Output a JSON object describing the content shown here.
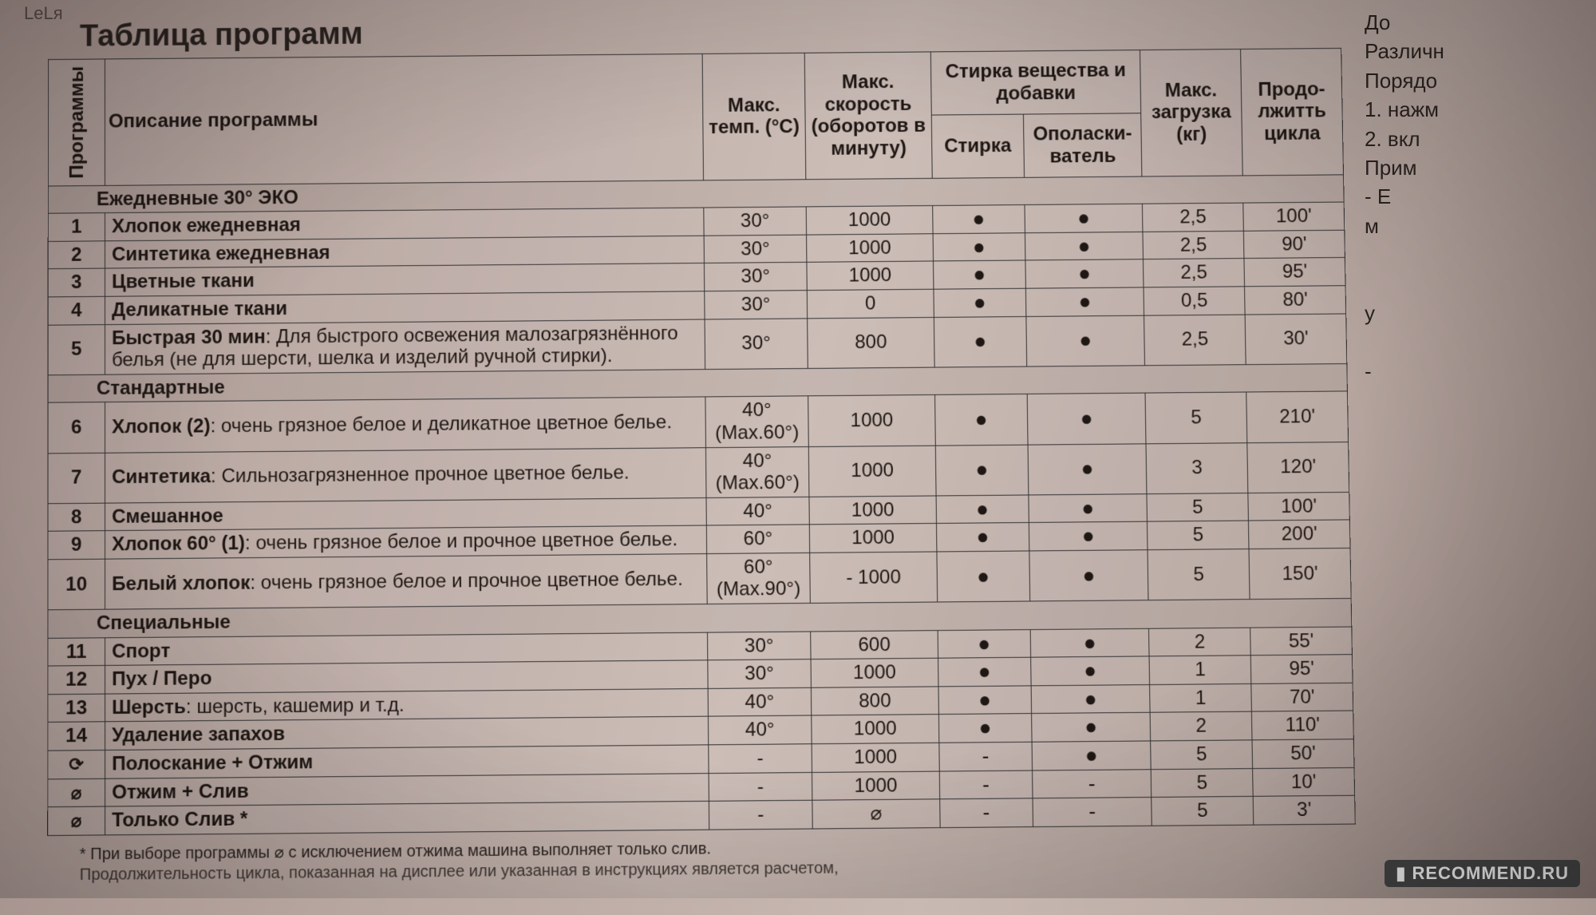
{
  "title": "Таблица программ",
  "topleft": "LeLя",
  "watermark": "▮ RECOMMEND.RU",
  "footnote": "* При выборе программы ⌀ с исключением отжима машина выполняет только слив.",
  "footer2": "Продолжительность цикла, показанная на дисплее или указанная в инструкциях является расчетом, ",
  "right_fragments": [
    "До",
    "Различн",
    "Порядо",
    "1. нажм",
    "2. вкл",
    "Прим",
    "- Е",
    "м",
    "",
    "",
    "у",
    "",
    "-"
  ],
  "headers": {
    "programs": "Программы",
    "desc": "Описание программы",
    "temp": "Макс. темп. (°C)",
    "speed": "Макс. скорость (оборотов в минуту)",
    "additives_group": "Стирка вещества и добавки",
    "wash": "Стирка",
    "rinse": "Ополаски-ватель",
    "load": "Макс. загрузка (кг)",
    "duration": "Продо-лжитть цикла"
  },
  "sections": [
    {
      "title": "Ежедневные 30° ЭКО",
      "rows": [
        {
          "n": "1",
          "desc_b": "Хлопок ежедневная",
          "desc_r": "",
          "temp": "30°",
          "speed": "1000",
          "wash": "●",
          "rinse": "●",
          "load": "2,5",
          "dur": "100'"
        },
        {
          "n": "2",
          "desc_b": "Синтетика ежедневная",
          "desc_r": "",
          "temp": "30°",
          "speed": "1000",
          "wash": "●",
          "rinse": "●",
          "load": "2,5",
          "dur": "90'"
        },
        {
          "n": "3",
          "desc_b": "Цветные ткани",
          "desc_r": "",
          "temp": "30°",
          "speed": "1000",
          "wash": "●",
          "rinse": "●",
          "load": "2,5",
          "dur": "95'"
        },
        {
          "n": "4",
          "desc_b": "Деликатные ткани",
          "desc_r": "",
          "temp": "30°",
          "speed": "0",
          "wash": "●",
          "rinse": "●",
          "load": "0,5",
          "dur": "80'"
        },
        {
          "n": "5",
          "desc_b": "Быстрая 30 мин",
          "desc_r": ": Для быстрого освежения малозагрязнённого белья (не для шерсти, шелка и изделий ручной стирки).",
          "temp": "30°",
          "speed": "800",
          "wash": "●",
          "rinse": "●",
          "load": "2,5",
          "dur": "30'"
        }
      ]
    },
    {
      "title": "Стандартные",
      "rows": [
        {
          "n": "6",
          "desc_b": "Хлопок (2)",
          "desc_r": ": очень грязное белое и деликатное цветное белье.",
          "temp": "40° (Max.60°)",
          "speed": "1000",
          "wash": "●",
          "rinse": "●",
          "load": "5",
          "dur": "210'"
        },
        {
          "n": "7",
          "desc_b": "Синтетика",
          "desc_r": ": Сильнозагрязненное прочное цветное белье.",
          "temp": "40° (Max.60°)",
          "speed": "1000",
          "wash": "●",
          "rinse": "●",
          "load": "3",
          "dur": "120'"
        },
        {
          "n": "8",
          "desc_b": "Смешанное",
          "desc_r": "",
          "temp": "40°",
          "speed": "1000",
          "wash": "●",
          "rinse": "●",
          "load": "5",
          "dur": "100'"
        },
        {
          "n": "9",
          "desc_b": "Хлопок 60° (1)",
          "desc_r": ": очень грязное белое и прочное цветное белье.",
          "temp": "60°",
          "speed": "1000",
          "wash": "●",
          "rinse": "●",
          "load": "5",
          "dur": "200'"
        },
        {
          "n": "10",
          "desc_b": "Белый хлопок",
          "desc_r": ": очень грязное белое и прочное цветное белье.",
          "temp": "60° (Max.90°)",
          "speed": "- 1000",
          "wash": "●",
          "rinse": "●",
          "load": "5",
          "dur": "150'"
        }
      ]
    },
    {
      "title": "Специальные",
      "rows": [
        {
          "n": "11",
          "desc_b": "Спорт",
          "desc_r": "",
          "temp": "30°",
          "speed": "600",
          "wash": "●",
          "rinse": "●",
          "load": "2",
          "dur": "55'"
        },
        {
          "n": "12",
          "desc_b": "Пух / Перо",
          "desc_r": "",
          "temp": "30°",
          "speed": "1000",
          "wash": "●",
          "rinse": "●",
          "load": "1",
          "dur": "95'"
        },
        {
          "n": "13",
          "desc_b": "Шерсть",
          "desc_r": ": шерсть, кашемир и т.д.",
          "temp": "40°",
          "speed": "800",
          "wash": "●",
          "rinse": "●",
          "load": "1",
          "dur": "70'"
        },
        {
          "n": "14",
          "desc_b": "Удаление запахов",
          "desc_r": "",
          "temp": "40°",
          "speed": "1000",
          "wash": "●",
          "rinse": "●",
          "load": "2",
          "dur": "110'"
        },
        {
          "n": "⟳",
          "icon": true,
          "desc_b": "Полоскание + Отжим",
          "desc_r": "",
          "temp": "-",
          "speed": "1000",
          "wash": "-",
          "rinse": "●",
          "load": "5",
          "dur": "50'"
        },
        {
          "n": "⌀",
          "icon": true,
          "desc_b": "Отжим + Слив",
          "desc_r": "",
          "temp": "-",
          "speed": "1000",
          "wash": "-",
          "rinse": "-",
          "load": "5",
          "dur": "10'"
        },
        {
          "n": "⌀",
          "icon": true,
          "desc_b": "Только Слив *",
          "desc_r": "",
          "temp": "-",
          "speed": "⌀",
          "wash": "-",
          "rinse": "-",
          "load": "5",
          "dur": "3'"
        }
      ]
    }
  ]
}
